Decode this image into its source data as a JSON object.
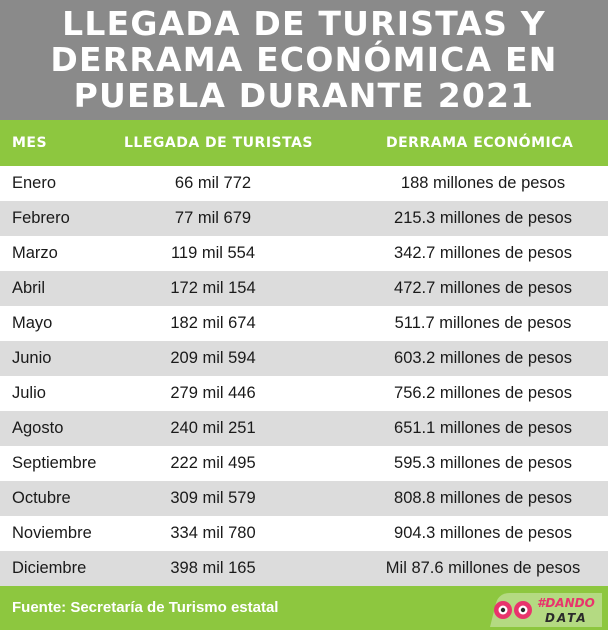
{
  "title_lines": [
    "LLEGADA DE TURISTAS Y",
    "DERRAMA ECONÓMICA EN",
    "PUEBLA DURANTE 2021"
  ],
  "columns": [
    "MES",
    "LLEGADA DE TURISTAS",
    "DERRAMA ECONÓMICA"
  ],
  "chart_data": {
    "type": "table",
    "columns": [
      "MES",
      "LLEGADA DE TURISTAS",
      "DERRAMA ECONÓMICA"
    ],
    "rows": [
      [
        "Enero",
        "66 mil 772",
        "188 millones de pesos"
      ],
      [
        "Febrero",
        "77 mil 679",
        "215.3 millones de pesos"
      ],
      [
        "Marzo",
        "119 mil 554",
        "342.7 millones de pesos"
      ],
      [
        "Abril",
        "172 mil 154",
        "472.7 millones de pesos"
      ],
      [
        "Mayo",
        "182 mil 674",
        "511.7 millones de pesos"
      ],
      [
        "Junio",
        "209 mil 594",
        "603.2 millones de pesos"
      ],
      [
        "Julio",
        "279 mil 446",
        "756.2 millones de pesos"
      ],
      [
        "Agosto",
        "240 mil 251",
        "651.1 millones de pesos"
      ],
      [
        "Septiembre",
        "222 mil 495",
        "595.3 millones de pesos"
      ],
      [
        "Octubre",
        "309 mil 579",
        "808.8 millones de pesos"
      ],
      [
        "Noviembre",
        "334 mil 780",
        "904.3 millones de pesos"
      ],
      [
        "Diciembre",
        "398 mil 165",
        "Mil 87.6 millones de pesos"
      ]
    ]
  },
  "footer": {
    "source": "Fuente: Secretaría de Turismo estatal",
    "logo_text_top": "#DANDO",
    "logo_text_bottom": "DATA"
  },
  "colors": {
    "title_band": "#8a8a8a",
    "accent_green": "#8dc73f",
    "row_alt": "#dcdcdc",
    "logo_pink": "#e8346c",
    "logo_dark": "#2b2b2b"
  },
  "icons": [
    "dando-data-logo-icon"
  ]
}
